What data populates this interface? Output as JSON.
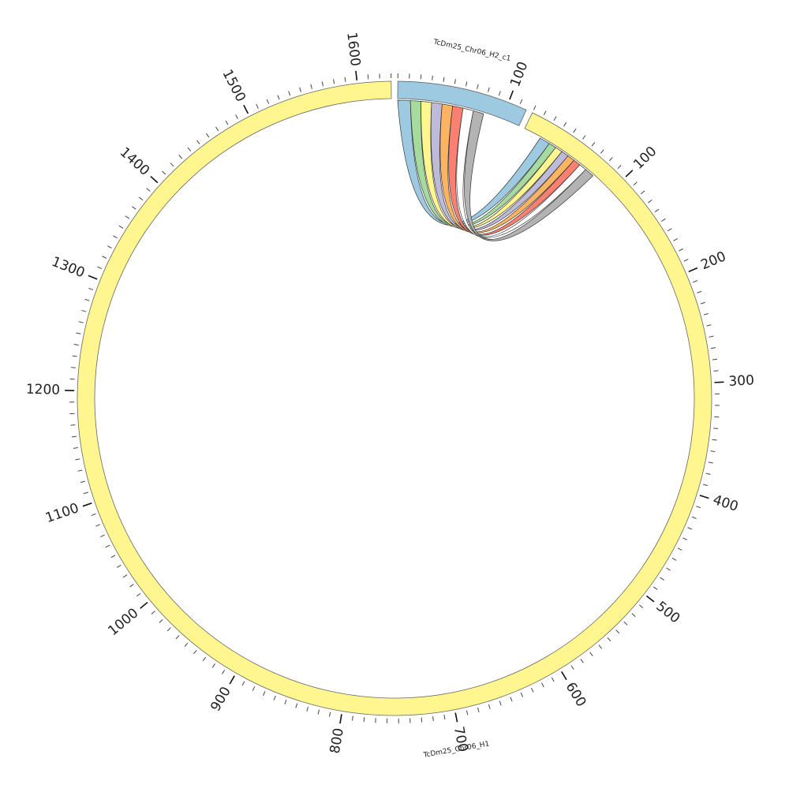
{
  "chart_data": {
    "type": "chord",
    "sectors": [
      {
        "name": "TcDm25_Chr06_H2_c1",
        "length": 117,
        "color": "#9ecae1",
        "ticks": [
          100
        ]
      },
      {
        "name": "TcDm25_Chr06_H1",
        "length": 1630,
        "color": "#fff68f",
        "ticks": [
          100,
          200,
          300,
          400,
          500,
          600,
          700,
          800,
          900,
          1000,
          1100,
          1200,
          1300,
          1400,
          1500,
          1600
        ]
      }
    ],
    "minor_tick_interval": 10,
    "links": [
      {
        "source": [
          0,
          12
        ],
        "target": [
          17,
          27
        ],
        "color": "#9ecae1"
      },
      {
        "source": [
          12,
          22
        ],
        "target": [
          27,
          34
        ],
        "color": "#a6dba0"
      },
      {
        "source": [
          22,
          32
        ],
        "target": [
          34,
          41
        ],
        "color": "#fff68f"
      },
      {
        "source": [
          32,
          42
        ],
        "target": [
          41,
          48
        ],
        "color": "#bebada"
      },
      {
        "source": [
          42,
          52
        ],
        "target": [
          48,
          55
        ],
        "color": "#fdb462"
      },
      {
        "source": [
          52,
          62
        ],
        "target": [
          55,
          62
        ],
        "color": "#fb8072"
      },
      {
        "source": [
          62,
          72
        ],
        "target": [
          62,
          69
        ],
        "color": "#ffffff"
      },
      {
        "source": [
          72,
          82
        ],
        "target": [
          69,
          78
        ],
        "color": "#b3b3b3"
      }
    ]
  }
}
